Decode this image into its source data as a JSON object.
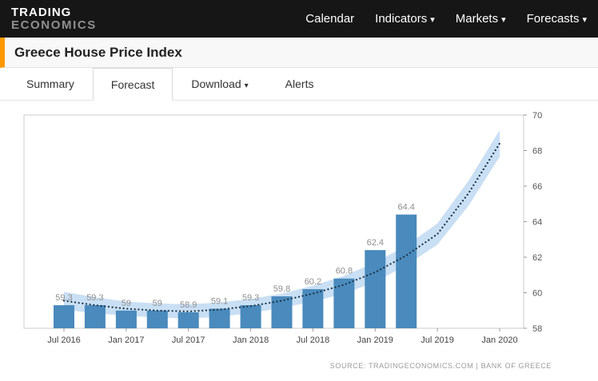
{
  "header": {
    "logo_line1": "TRADING",
    "logo_line2": "ECONOMICS",
    "nav": [
      {
        "label": "Calendar",
        "has_dropdown": false
      },
      {
        "label": "Indicators",
        "has_dropdown": true
      },
      {
        "label": "Markets",
        "has_dropdown": true
      },
      {
        "label": "Forecasts",
        "has_dropdown": true
      }
    ]
  },
  "page": {
    "title": "Greece House Price Index"
  },
  "tabs": [
    {
      "label": "Summary",
      "active": false,
      "has_dropdown": false
    },
    {
      "label": "Forecast",
      "active": true,
      "has_dropdown": false
    },
    {
      "label": "Download",
      "active": false,
      "has_dropdown": true
    },
    {
      "label": "Alerts",
      "active": false,
      "has_dropdown": false
    }
  ],
  "source_line": "SOURCE: TRADINGECONOMICS.COM | BANK OF GREECE",
  "chart_data": {
    "type": "bar",
    "title": "Greece House Price Index forecast",
    "xlabel": "",
    "ylabel": "",
    "ylim": [
      58,
      70
    ],
    "y_ticks": [
      58,
      60,
      62,
      64,
      66,
      68,
      70
    ],
    "legend": "none",
    "grid": false,
    "categories": [
      "Jul 2016",
      "Oct 2016",
      "Jan 2017",
      "Apr 2017",
      "Jul 2017",
      "Oct 2017",
      "Jan 2018",
      "Apr 2018",
      "Jul 2018",
      "Oct 2018",
      "Jan 2019",
      "Apr 2019"
    ],
    "values": [
      59.3,
      59.3,
      59,
      59,
      58.9,
      59.1,
      59.3,
      59.8,
      60.2,
      60.8,
      62.4,
      64.4
    ],
    "bar_labels": [
      "59.3",
      "59.3",
      "59",
      "59",
      "58.9",
      "59.1",
      "59.3",
      "59.8",
      "60.2",
      "60.8",
      "62.4",
      "64.4"
    ],
    "x_ticks": [
      {
        "t": 0,
        "label": "Jul 2016"
      },
      {
        "t": 2,
        "label": "Jan 2017"
      },
      {
        "t": 4,
        "label": "Jul 2017"
      },
      {
        "t": 6,
        "label": "Jan 2018"
      },
      {
        "t": 8,
        "label": "Jul 2018"
      },
      {
        "t": 10,
        "label": "Jan 2019"
      },
      {
        "t": 12,
        "label": "Jul 2019"
      },
      {
        "t": 14,
        "label": "Jan 2020"
      }
    ],
    "forecast_trend": {
      "timeline": [
        "Jul 2016",
        "Oct 2016",
        "Jan 2017",
        "Apr 2017",
        "Jul 2017",
        "Oct 2017",
        "Jan 2018",
        "Apr 2018",
        "Jul 2018",
        "Oct 2018",
        "Jan 2019",
        "Apr 2019",
        "Jul 2019",
        "Oct 2019",
        "Jan 2020"
      ],
      "mid": [
        59.55,
        59.3,
        59.1,
        59.0,
        58.95,
        59.05,
        59.25,
        59.55,
        59.95,
        60.45,
        61.15,
        62.1,
        63.3,
        65.6,
        68.4
      ],
      "upper": [
        60.05,
        59.75,
        59.5,
        59.4,
        59.35,
        59.45,
        59.65,
        59.95,
        60.4,
        60.95,
        61.7,
        62.65,
        63.9,
        66.3,
        69.15
      ],
      "lower": [
        59.05,
        58.85,
        58.7,
        58.6,
        58.55,
        58.65,
        58.85,
        59.15,
        59.5,
        59.95,
        60.6,
        61.55,
        62.7,
        64.9,
        67.65
      ]
    },
    "colors": {
      "bar": "#4a8abc",
      "band": "#c3dcf3",
      "trend_line": "#1b3349",
      "value_label": "#8e8e8e",
      "axis_label": "#555555",
      "frame": "#cccccc"
    }
  }
}
